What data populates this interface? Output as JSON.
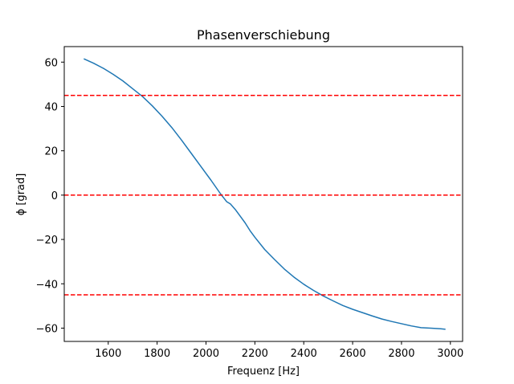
{
  "chart_data": {
    "type": "line",
    "title": "Phasenverschiebung",
    "xlabel": "Frequenz [Hz]",
    "ylabel": "ϕ [grad]",
    "xlim": [
      1420,
      3050
    ],
    "ylim": [
      -66,
      67
    ],
    "grid": false,
    "xticks": [
      1600,
      1800,
      2000,
      2200,
      2400,
      2600,
      2800,
      3000
    ],
    "yticks": [
      -60,
      -40,
      -20,
      0,
      20,
      40,
      60
    ],
    "xtick_labels": [
      "1600",
      "1800",
      "2000",
      "2200",
      "2400",
      "2600",
      "2800",
      "3000"
    ],
    "ytick_labels": [
      "−60",
      "−40",
      "−20",
      "0",
      "20",
      "40",
      "60"
    ],
    "series": [
      {
        "color": "#1f77b4",
        "x": [
          1500,
          1540,
          1580,
          1620,
          1660,
          1700,
          1740,
          1780,
          1820,
          1860,
          1900,
          1940,
          1980,
          2020,
          2060,
          2085,
          2100,
          2120,
          2140,
          2160,
          2180,
          2200,
          2240,
          2280,
          2320,
          2360,
          2400,
          2440,
          2480,
          2520,
          2560,
          2600,
          2640,
          2680,
          2720,
          2760,
          2800,
          2840,
          2880,
          2920,
          2960,
          2980
        ],
        "y": [
          61.5,
          59.5,
          57.2,
          54.5,
          51.5,
          48.0,
          44.5,
          40.3,
          35.6,
          30.5,
          24.8,
          18.8,
          12.8,
          6.8,
          0.5,
          -3.0,
          -4.0,
          -6.5,
          -9.5,
          -12.5,
          -16.0,
          -19.0,
          -24.5,
          -29.0,
          -33.3,
          -37.0,
          -40.2,
          -43.0,
          -45.5,
          -47.7,
          -49.8,
          -51.5,
          -53.0,
          -54.5,
          -55.9,
          -57.0,
          -58.0,
          -59.0,
          -59.8,
          -60.0,
          -60.3,
          -60.5
        ]
      }
    ],
    "hlines": [
      {
        "y": 45,
        "color": "#ff0000",
        "style": "dashed"
      },
      {
        "y": 0,
        "color": "#ff0000",
        "style": "dashed"
      },
      {
        "y": -45,
        "color": "#ff0000",
        "style": "dashed"
      }
    ]
  }
}
